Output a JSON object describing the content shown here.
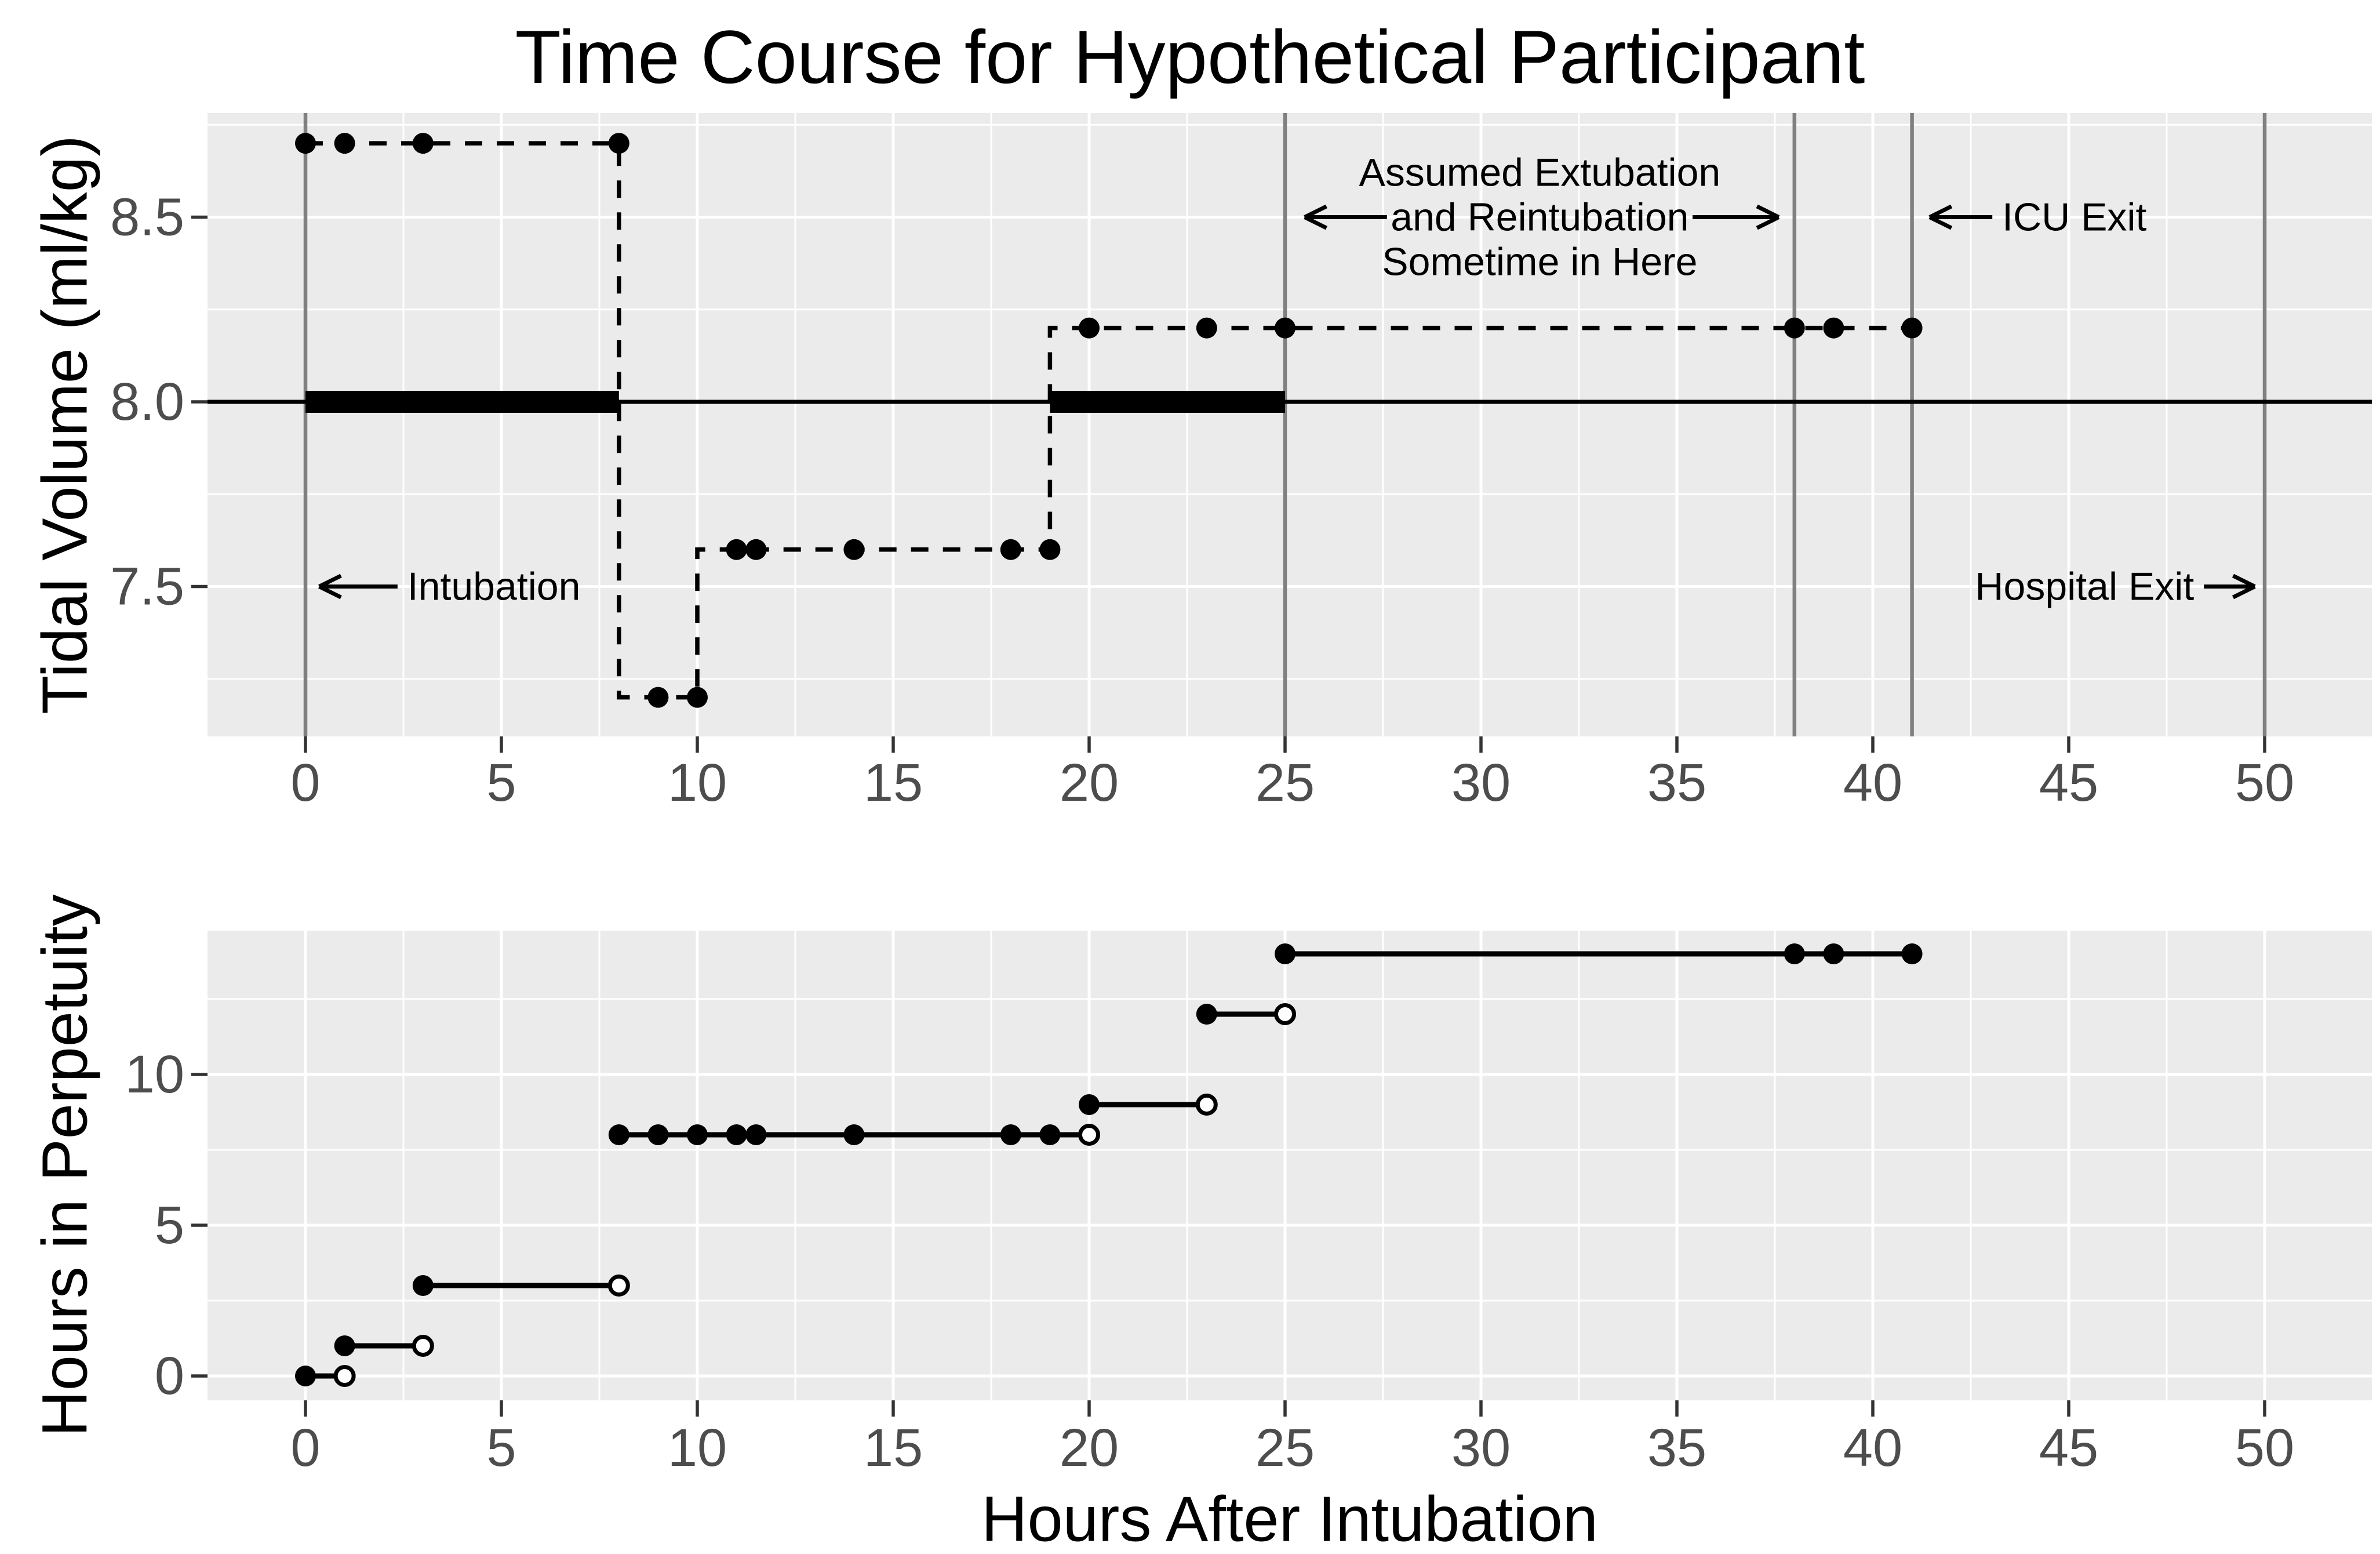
{
  "title": "Time Course for Hypothetical Participant",
  "colors": {
    "background": "#FFFFFF",
    "panel_background": "#EBEBEB",
    "grid": "#FFFFFF",
    "event_line": "#808080",
    "data": "#000000",
    "tick_mark": "#333333",
    "tick_label": "#4D4D4D",
    "open_point_fill": "#FFFFFF"
  },
  "chart_data": [
    {
      "type": "line",
      "panel": "top",
      "title": "Time Course for Hypothetical Participant",
      "xlabel": "",
      "ylabel": "Tidal Volume (ml/kg)",
      "xlim": [
        -2.5,
        52.7
      ],
      "ylim": [
        7.09,
        8.78
      ],
      "x_ticks": [
        0,
        5,
        10,
        15,
        20,
        25,
        30,
        35,
        40,
        45,
        50
      ],
      "x_tick_labels": [
        "0",
        "5",
        "10",
        "15",
        "20",
        "25",
        "30",
        "35",
        "40",
        "45",
        "50"
      ],
      "x_minor_ticks": [
        2.5,
        7.5,
        12.5,
        17.5,
        22.5,
        27.5,
        32.5,
        37.5,
        42.5,
        47.5
      ],
      "y_ticks": [
        7.5,
        8.0,
        8.5
      ],
      "y_tick_labels": [
        "7.5",
        "8.0",
        "8.5"
      ],
      "y_minor_ticks": [
        7.25,
        7.75,
        8.25,
        8.75
      ],
      "grid": "white major and minor gridlines on gray panel",
      "legend": "none",
      "reference_line_y": 8.0,
      "ventilation_bars": [
        {
          "y": 8.0,
          "x_start": 0,
          "x_end": 8
        },
        {
          "y": 8.0,
          "x_start": 19,
          "x_end": 25
        }
      ],
      "event_lines_x": [
        0,
        25,
        38,
        41,
        50
      ],
      "series": [
        {
          "name": "tidal-volume-measurements",
          "style": "dashed step line with filled points",
          "step_path": [
            [
              0,
              8.7
            ],
            [
              8,
              8.7
            ],
            [
              8,
              7.2
            ],
            [
              10,
              7.2
            ],
            [
              10,
              7.6
            ],
            [
              19,
              7.6
            ],
            [
              19,
              8.2
            ],
            [
              41,
              8.2
            ]
          ],
          "points": [
            [
              0,
              8.7
            ],
            [
              1,
              8.7
            ],
            [
              3,
              8.7
            ],
            [
              8,
              8.7
            ],
            [
              9,
              7.2
            ],
            [
              10,
              7.2
            ],
            [
              11,
              7.6
            ],
            [
              11.5,
              7.6
            ],
            [
              14,
              7.6
            ],
            [
              18,
              7.6
            ],
            [
              19,
              7.6
            ],
            [
              20,
              8.2
            ],
            [
              23,
              8.2
            ],
            [
              25,
              8.2
            ],
            [
              38,
              8.2
            ],
            [
              39,
              8.2
            ],
            [
              41,
              8.2
            ]
          ]
        }
      ],
      "annotations": [
        {
          "id": "intubation",
          "lines": [
            "Intubation"
          ],
          "anchor": "start",
          "text_x": 2.6,
          "text_y": 7.5,
          "arrows": [
            {
              "x1": 2.35,
              "y1": 7.5,
              "x2": 0.35,
              "y2": 7.5
            }
          ]
        },
        {
          "id": "extubation-window",
          "lines": [
            "Assumed Extubation",
            "and Reintubation",
            "Sometime in Here"
          ],
          "anchor": "middle",
          "text_x": 31.5,
          "text_y": 8.5,
          "arrows": [
            {
              "x1": 27.6,
              "y1": 8.5,
              "x2": 25.5,
              "y2": 8.5
            },
            {
              "x1": 35.4,
              "y1": 8.5,
              "x2": 37.6,
              "y2": 8.5
            }
          ]
        },
        {
          "id": "icu-exit",
          "lines": [
            "ICU Exit"
          ],
          "anchor": "start",
          "text_x": 43.3,
          "text_y": 8.5,
          "arrows": [
            {
              "x1": 43.05,
              "y1": 8.5,
              "x2": 41.45,
              "y2": 8.5
            }
          ]
        },
        {
          "id": "hospital-exit",
          "lines": [
            "Hospital Exit"
          ],
          "anchor": "end",
          "text_x": 48.2,
          "text_y": 7.5,
          "arrows": [
            {
              "x1": 48.45,
              "y1": 7.5,
              "x2": 49.75,
              "y2": 7.5
            }
          ]
        }
      ]
    },
    {
      "type": "line",
      "panel": "bottom",
      "title": "",
      "xlabel": "Hours After Intubation",
      "ylabel": "Hours in Perpetuity",
      "xlim": [
        -2.5,
        52.7
      ],
      "ylim": [
        -0.8,
        14.8
      ],
      "x_ticks": [
        0,
        5,
        10,
        15,
        20,
        25,
        30,
        35,
        40,
        45,
        50
      ],
      "x_tick_labels": [
        "0",
        "5",
        "10",
        "15",
        "20",
        "25",
        "30",
        "35",
        "40",
        "45",
        "50"
      ],
      "x_minor_ticks": [
        2.5,
        7.5,
        12.5,
        17.5,
        22.5,
        27.5,
        32.5,
        37.5,
        42.5,
        47.5
      ],
      "y_ticks": [
        0,
        5,
        10
      ],
      "y_tick_labels": [
        "0",
        "5",
        "10"
      ],
      "y_minor_ticks": [
        2.5,
        7.5,
        12.5
      ],
      "grid": "white major and minor gridlines on gray panel",
      "legend": "none",
      "step_segments": [
        {
          "y": 0,
          "x_start": 0,
          "x_end": 1,
          "closed_points": [
            0
          ],
          "open_end": true
        },
        {
          "y": 1,
          "x_start": 1,
          "x_end": 3,
          "closed_points": [
            1
          ],
          "open_end": true
        },
        {
          "y": 3,
          "x_start": 3,
          "x_end": 8,
          "closed_points": [
            3
          ],
          "open_end": true
        },
        {
          "y": 8,
          "x_start": 8,
          "x_end": 20,
          "closed_points": [
            8,
            9,
            10,
            11,
            11.5,
            14,
            18,
            19
          ],
          "open_end": true
        },
        {
          "y": 9,
          "x_start": 20,
          "x_end": 23,
          "closed_points": [
            20
          ],
          "open_end": true
        },
        {
          "y": 12,
          "x_start": 23,
          "x_end": 25,
          "closed_points": [
            23
          ],
          "open_end": true
        },
        {
          "y": 14,
          "x_start": 25,
          "x_end": 41,
          "closed_points": [
            25,
            38,
            39,
            41
          ],
          "open_end": false
        }
      ]
    }
  ]
}
